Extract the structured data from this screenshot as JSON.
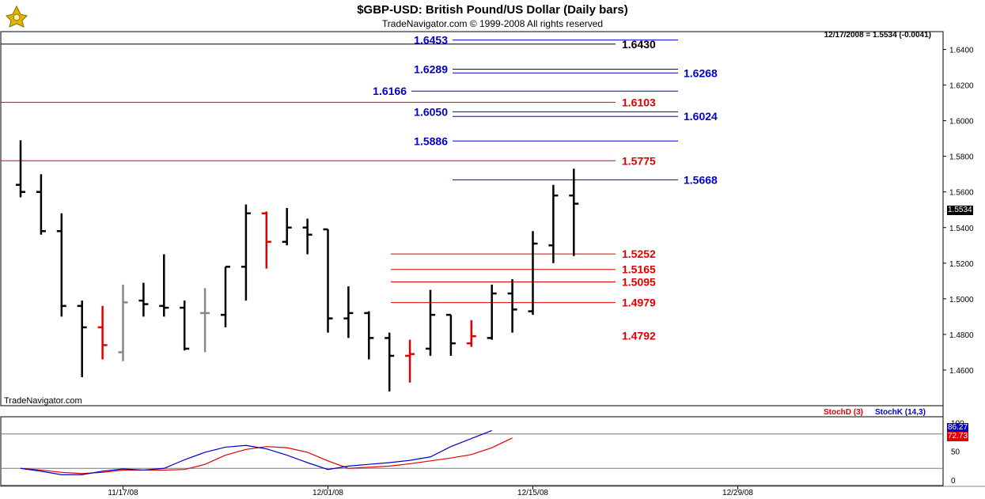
{
  "header": {
    "title": "$GBP-USD:  British Pound/US Dollar  (Daily bars)",
    "copyright": "TradeNavigator.com © 1999-2008 All rights reserved",
    "quote": "12/17/2008 = 1.5534 (-0.0041)",
    "watermark": "TradeNavigator.com"
  },
  "indicator": {
    "stochd_label": "StochD (3)",
    "stochk_label": "StochK (14,3)",
    "stochk_value": "86.27",
    "stochd_value": "72.73",
    "colors": {
      "stochk": "#0000cc",
      "stochd": "#e00000"
    }
  },
  "price_badge": "1.5534",
  "chart_data": [
    {
      "type": "ohlc",
      "title": "$GBP-USD:  British Pound/US Dollar  (Daily bars)",
      "ylim": [
        1.44,
        1.65
      ],
      "y_ticks": [
        "1.4600",
        "1.4800",
        "1.5000",
        "1.5200",
        "1.5400",
        "1.5600",
        "1.5800",
        "1.6000",
        "1.6200",
        "1.6400"
      ],
      "x_ticks": [
        "11/17/08",
        "12/01/08",
        "12/15/08",
        "12/29/08"
      ],
      "x_tick_bars": [
        5,
        15,
        25,
        35
      ],
      "bars": [
        {
          "o": 1.564,
          "h": 1.589,
          "l": 1.557,
          "c": 1.56,
          "color": "black"
        },
        {
          "o": 1.56,
          "h": 1.57,
          "l": 1.536,
          "c": 1.538,
          "color": "black"
        },
        {
          "o": 1.538,
          "h": 1.548,
          "l": 1.49,
          "c": 1.496,
          "color": "black"
        },
        {
          "o": 1.496,
          "h": 1.499,
          "l": 1.456,
          "c": 1.484,
          "color": "black"
        },
        {
          "o": 1.484,
          "h": 1.496,
          "l": 1.466,
          "c": 1.474,
          "color": "red"
        },
        {
          "o": 1.47,
          "h": 1.508,
          "l": 1.465,
          "c": 1.498,
          "color": "gray"
        },
        {
          "o": 1.499,
          "h": 1.509,
          "l": 1.49,
          "c": 1.497,
          "color": "black"
        },
        {
          "o": 1.496,
          "h": 1.525,
          "l": 1.49,
          "c": 1.495,
          "color": "black"
        },
        {
          "o": 1.495,
          "h": 1.499,
          "l": 1.471,
          "c": 1.472,
          "color": "black"
        },
        {
          "o": 1.492,
          "h": 1.506,
          "l": 1.47,
          "c": 1.492,
          "color": "gray"
        },
        {
          "o": 1.491,
          "h": 1.518,
          "l": 1.484,
          "c": 1.518,
          "color": "black"
        },
        {
          "o": 1.518,
          "h": 1.553,
          "l": 1.499,
          "c": 1.548,
          "color": "black"
        },
        {
          "o": 1.548,
          "h": 1.549,
          "l": 1.517,
          "c": 1.532,
          "color": "red"
        },
        {
          "o": 1.532,
          "h": 1.551,
          "l": 1.53,
          "c": 1.54,
          "color": "black"
        },
        {
          "o": 1.54,
          "h": 1.545,
          "l": 1.525,
          "c": 1.536,
          "color": "black"
        },
        {
          "o": 1.539,
          "h": 1.539,
          "l": 1.481,
          "c": 1.489,
          "color": "black"
        },
        {
          "o": 1.489,
          "h": 1.507,
          "l": 1.478,
          "c": 1.492,
          "color": "black"
        },
        {
          "o": 1.492,
          "h": 1.493,
          "l": 1.466,
          "c": 1.478,
          "color": "black"
        },
        {
          "o": 1.478,
          "h": 1.481,
          "l": 1.448,
          "c": 1.468,
          "color": "black"
        },
        {
          "o": 1.468,
          "h": 1.477,
          "l": 1.453,
          "c": 1.469,
          "color": "red"
        },
        {
          "o": 1.472,
          "h": 1.505,
          "l": 1.468,
          "c": 1.491,
          "color": "black"
        },
        {
          "o": 1.491,
          "h": 1.491,
          "l": 1.468,
          "c": 1.475,
          "color": "black"
        },
        {
          "o": 1.475,
          "h": 1.488,
          "l": 1.473,
          "c": 1.479,
          "color": "red"
        },
        {
          "o": 1.478,
          "h": 1.508,
          "l": 1.477,
          "c": 1.503,
          "color": "black"
        },
        {
          "o": 1.503,
          "h": 1.511,
          "l": 1.481,
          "c": 1.494,
          "color": "black"
        },
        {
          "o": 1.493,
          "h": 1.538,
          "l": 1.491,
          "c": 1.531,
          "color": "black"
        },
        {
          "o": 1.53,
          "h": 1.564,
          "l": 1.52,
          "c": 1.558,
          "color": "black"
        },
        {
          "o": 1.558,
          "h": 1.573,
          "l": 1.524,
          "c": 1.5534,
          "color": "black"
        }
      ],
      "levels": [
        {
          "value": 1.6453,
          "label": "1.6453",
          "color": "#0000cc",
          "line": "right",
          "text": "left"
        },
        {
          "value": 1.643,
          "label": "1.6430",
          "color": "#000000",
          "line": "full",
          "text": "right"
        },
        {
          "value": 1.6289,
          "label": "1.6289",
          "color": "#0000cc",
          "line": "right",
          "text": "left"
        },
        {
          "value": 1.6268,
          "label": "1.6268",
          "color": "#0000cc",
          "line": "right",
          "text": "far"
        },
        {
          "value": 1.6166,
          "label": "1.6166",
          "color": "#0000cc",
          "line": "right2",
          "text": "left2"
        },
        {
          "value": 1.6103,
          "label": "1.6103",
          "color": "#e00000",
          "line": "full",
          "text": "right"
        },
        {
          "value": 1.605,
          "label": "1.6050",
          "color": "#0000cc",
          "line": "right",
          "text": "left"
        },
        {
          "value": 1.6024,
          "label": "1.6024",
          "color": "#0000cc",
          "line": "right",
          "text": "far"
        },
        {
          "value": 1.5886,
          "label": "1.5886",
          "color": "#0000cc",
          "line": "right",
          "text": "left"
        },
        {
          "value": 1.5775,
          "label": "1.5775",
          "color": "#e00000",
          "line": "full",
          "text": "right"
        },
        {
          "value": 1.5668,
          "label": "1.5668",
          "color": "#0000cc",
          "line": "right",
          "text": "far"
        },
        {
          "value": 1.5252,
          "label": "1.5252",
          "color": "#e00000",
          "line": "mid",
          "text": "right"
        },
        {
          "value": 1.5165,
          "label": "1.5165",
          "color": "#e00000",
          "line": "mid",
          "text": "right"
        },
        {
          "value": 1.5095,
          "label": "1.5095",
          "color": "#e00000",
          "line": "mid",
          "text": "right"
        },
        {
          "value": 1.4979,
          "label": "1.4979",
          "color": "#e00000",
          "line": "mid",
          "text": "right"
        },
        {
          "value": 1.4792,
          "label": "1.4792",
          "color": "#e00000",
          "line": "none",
          "text": "right"
        }
      ]
    },
    {
      "type": "line",
      "ylim": [
        -10,
        110
      ],
      "y_ticks": [
        "0",
        "50",
        "100"
      ],
      "reference_lines": [
        20,
        80
      ],
      "series": [
        {
          "name": "StochD (3)",
          "color": "#e00000",
          "values": [
            20,
            17,
            13,
            11,
            13,
            17,
            17,
            17,
            18,
            27,
            43,
            53,
            58,
            56,
            48,
            33,
            20,
            22,
            24,
            28,
            33,
            38,
            44,
            56,
            73
          ]
        },
        {
          "name": "StochK (14,3)",
          "color": "#0000cc",
          "values": [
            20,
            15,
            9,
            9,
            15,
            19,
            17,
            20,
            35,
            48,
            57,
            60,
            54,
            43,
            30,
            18,
            24,
            27,
            30,
            34,
            40,
            58,
            72,
            86
          ]
        }
      ]
    }
  ]
}
